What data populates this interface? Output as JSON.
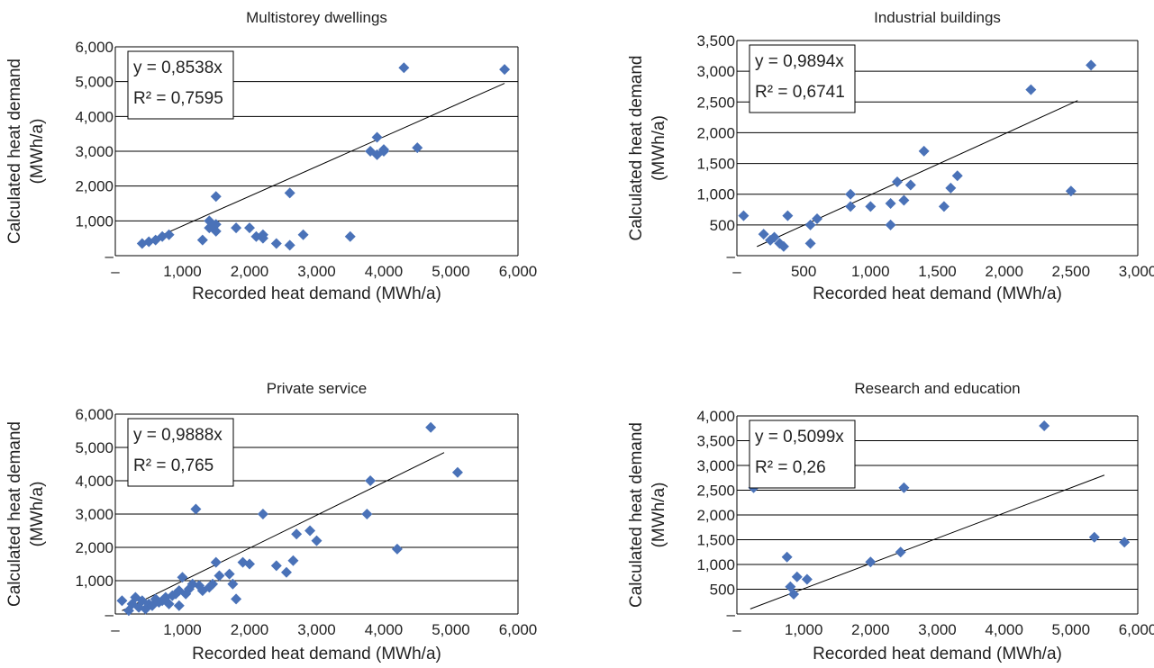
{
  "colors": {
    "marker": "#4a72b8",
    "grid": "#000000",
    "trend": "#000000"
  },
  "chart_data": [
    {
      "type": "scatter",
      "title": "Multistorey dwellings",
      "xlabel": "Recorded heat demand (MWh/a)",
      "ylabel_lines": [
        "Calculated heat demand",
        "(MWh/a)"
      ],
      "xlim": [
        0,
        6000
      ],
      "ylim": [
        0,
        6000
      ],
      "xticks": [
        0,
        1000,
        2000,
        3000,
        4000,
        5000,
        6000
      ],
      "yticks": [
        0,
        1000,
        2000,
        3000,
        4000,
        5000,
        6000
      ],
      "xtick_labels": [
        "–",
        "1,000",
        "2,000",
        "3,000",
        "4,000",
        "5,000",
        "6,000"
      ],
      "ytick_labels": [
        "–",
        "1,000",
        "2,000",
        "3,000",
        "4,000",
        "5,000",
        "6,000"
      ],
      "grid": "horizontal",
      "equation": "y = 0,8538x",
      "r2_label": "R² = 0,7595",
      "slope": 0.8538,
      "trend_x": [
        400,
        5800
      ],
      "points": [
        [
          400,
          350
        ],
        [
          500,
          400
        ],
        [
          600,
          450
        ],
        [
          700,
          550
        ],
        [
          800,
          600
        ],
        [
          1300,
          450
        ],
        [
          1400,
          1000
        ],
        [
          1400,
          800
        ],
        [
          1500,
          1700
        ],
        [
          1500,
          900
        ],
        [
          1500,
          700
        ],
        [
          1800,
          800
        ],
        [
          2000,
          800
        ],
        [
          2100,
          550
        ],
        [
          2200,
          600
        ],
        [
          2200,
          500
        ],
        [
          2400,
          350
        ],
        [
          2600,
          300
        ],
        [
          2600,
          1800
        ],
        [
          2800,
          600
        ],
        [
          3500,
          550
        ],
        [
          3800,
          3000
        ],
        [
          3900,
          2900
        ],
        [
          3900,
          3400
        ],
        [
          4000,
          3000
        ],
        [
          4000,
          3050
        ],
        [
          4300,
          5400
        ],
        [
          4500,
          3100
        ],
        [
          5800,
          5350
        ]
      ]
    },
    {
      "type": "scatter",
      "title": "Industrial buildings",
      "xlabel": "Recorded heat demand (MWh/a)",
      "ylabel_lines": [
        "Calculated heat demand",
        "(MWh/a)"
      ],
      "xlim": [
        0,
        3000
      ],
      "ylim": [
        0,
        3500
      ],
      "xticks": [
        0,
        500,
        1000,
        1500,
        2000,
        2500,
        3000
      ],
      "yticks": [
        0,
        500,
        1000,
        1500,
        2000,
        2500,
        3000,
        3500
      ],
      "xtick_labels": [
        "–",
        "500",
        "1,000",
        "1,500",
        "2,000",
        "2,500",
        "3,000"
      ],
      "ytick_labels": [
        "–",
        "500",
        "1,000",
        "1,500",
        "2,000",
        "2,500",
        "3,000",
        "3,500"
      ],
      "grid": "horizontal",
      "equation": "y = 0,9894x",
      "r2_label": "R² = 0,6741",
      "slope": 0.9894,
      "trend_x": [
        150,
        2550
      ],
      "points": [
        [
          50,
          650
        ],
        [
          200,
          350
        ],
        [
          250,
          250
        ],
        [
          280,
          300
        ],
        [
          320,
          200
        ],
        [
          350,
          150
        ],
        [
          380,
          650
        ],
        [
          550,
          500
        ],
        [
          550,
          200
        ],
        [
          600,
          600
        ],
        [
          850,
          1000
        ],
        [
          850,
          800
        ],
        [
          1000,
          800
        ],
        [
          1150,
          500
        ],
        [
          1150,
          850
        ],
        [
          1200,
          1200
        ],
        [
          1250,
          900
        ],
        [
          1300,
          1150
        ],
        [
          1400,
          1700
        ],
        [
          1550,
          800
        ],
        [
          1600,
          1100
        ],
        [
          1650,
          1300
        ],
        [
          2200,
          2700
        ],
        [
          2500,
          1050
        ],
        [
          2650,
          3100
        ]
      ]
    },
    {
      "type": "scatter",
      "title": "Private service",
      "xlabel": "Recorded heat demand (MWh/a)",
      "ylabel_lines": [
        "Calculated heat demand",
        "(MWh/a)"
      ],
      "xlim": [
        0,
        6000
      ],
      "ylim": [
        0,
        6000
      ],
      "xticks": [
        0,
        1000,
        2000,
        3000,
        4000,
        5000,
        6000
      ],
      "yticks": [
        0,
        1000,
        2000,
        3000,
        4000,
        5000,
        6000
      ],
      "xtick_labels": [
        "–",
        "1,000",
        "2,000",
        "3,000",
        "4,000",
        "5,000",
        "6,000"
      ],
      "ytick_labels": [
        "–",
        "1,000",
        "2,000",
        "3,000",
        "4,000",
        "5,000",
        "6,000"
      ],
      "grid": "horizontal",
      "equation": "y = 0,9888x",
      "r2_label": "R² = 0,765",
      "slope": 0.9888,
      "trend_x": [
        100,
        4900
      ],
      "points": [
        [
          100,
          400
        ],
        [
          200,
          100
        ],
        [
          250,
          300
        ],
        [
          300,
          500
        ],
        [
          350,
          200
        ],
        [
          400,
          400
        ],
        [
          450,
          150
        ],
        [
          500,
          300
        ],
        [
          550,
          250
        ],
        [
          600,
          450
        ],
        [
          650,
          350
        ],
        [
          700,
          400
        ],
        [
          750,
          500
        ],
        [
          800,
          300
        ],
        [
          850,
          550
        ],
        [
          900,
          600
        ],
        [
          950,
          700
        ],
        [
          950,
          250
        ],
        [
          1000,
          1100
        ],
        [
          1050,
          600
        ],
        [
          1100,
          750
        ],
        [
          1150,
          900
        ],
        [
          1200,
          3150
        ],
        [
          1250,
          850
        ],
        [
          1300,
          700
        ],
        [
          1400,
          800
        ],
        [
          1450,
          900
        ],
        [
          1500,
          1550
        ],
        [
          1550,
          1150
        ],
        [
          1700,
          1200
        ],
        [
          1750,
          900
        ],
        [
          1800,
          450
        ],
        [
          1900,
          1550
        ],
        [
          2000,
          1500
        ],
        [
          2200,
          3000
        ],
        [
          2400,
          1450
        ],
        [
          2550,
          1250
        ],
        [
          2650,
          1600
        ],
        [
          2700,
          2400
        ],
        [
          2900,
          2500
        ],
        [
          3000,
          2200
        ],
        [
          3750,
          3000
        ],
        [
          3800,
          4000
        ],
        [
          4200,
          1950
        ],
        [
          4700,
          5600
        ],
        [
          5100,
          4250
        ]
      ]
    },
    {
      "type": "scatter",
      "title": "Research and education",
      "xlabel": "Recorded heat demand (MWh/a)",
      "ylabel_lines": [
        "Calculated heat demand",
        "(MWh/a)"
      ],
      "xlim": [
        0,
        6000
      ],
      "ylim": [
        0,
        4000
      ],
      "xticks": [
        0,
        1000,
        2000,
        3000,
        4000,
        5000,
        6000
      ],
      "yticks": [
        0,
        500,
        1000,
        1500,
        2000,
        2500,
        3000,
        3500,
        4000
      ],
      "xtick_labels": [
        "–",
        "1,000",
        "2,000",
        "3,000",
        "4,000",
        "5,000",
        "6,000"
      ],
      "ytick_labels": [
        "–",
        "500",
        "1,000",
        "1,500",
        "2,000",
        "2,500",
        "3,000",
        "3,500",
        "4,000"
      ],
      "grid": "horizontal",
      "equation": "y = 0,5099x",
      "r2_label": "R² = 0,26",
      "slope": 0.5099,
      "trend_x": [
        200,
        5500
      ],
      "points": [
        [
          250,
          2550
        ],
        [
          750,
          1150
        ],
        [
          800,
          550
        ],
        [
          850,
          400
        ],
        [
          900,
          750
        ],
        [
          1050,
          700
        ],
        [
          2000,
          1050
        ],
        [
          2450,
          1250
        ],
        [
          2500,
          2550
        ],
        [
          4600,
          3800
        ],
        [
          5350,
          1550
        ],
        [
          5800,
          1450
        ]
      ]
    }
  ]
}
